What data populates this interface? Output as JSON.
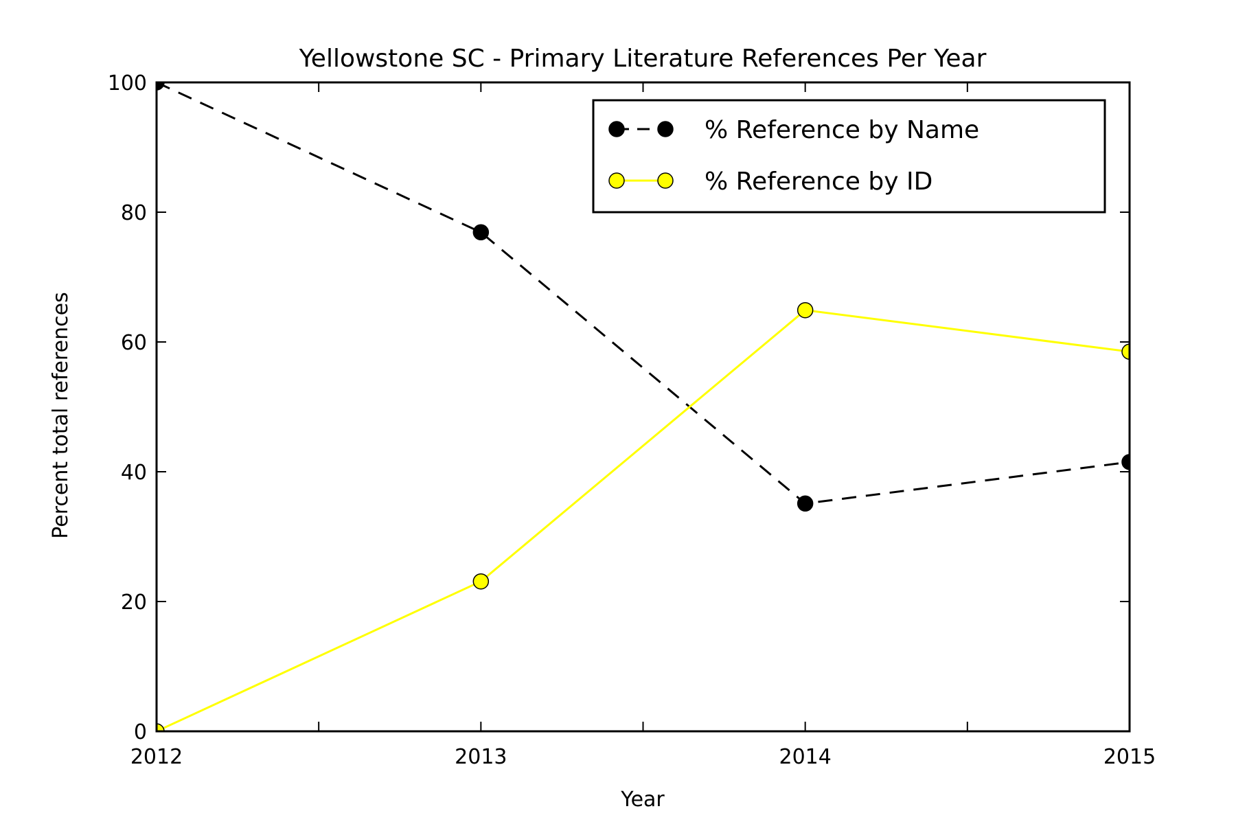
{
  "chart_data": {
    "type": "line",
    "title": "Yellowstone SC - Primary Literature References Per Year",
    "xlabel": "Year",
    "ylabel": "Percent total references",
    "x": [
      2012,
      2013,
      2014,
      2015
    ],
    "xlim": [
      2012,
      2015
    ],
    "ylim": [
      0,
      100
    ],
    "x_ticks": [
      2012,
      2013,
      2014,
      2015
    ],
    "x_tick_labels": [
      "2012",
      "2013",
      "2014",
      "2015"
    ],
    "x_minor_ticks": [
      2012.5,
      2013.5,
      2014.5
    ],
    "y_ticks": [
      0,
      20,
      40,
      60,
      80,
      100
    ],
    "y_tick_labels": [
      "0",
      "20",
      "40",
      "60",
      "80",
      "100"
    ],
    "grid": false,
    "legend_position": "top-right",
    "series": [
      {
        "name": "% Reference by Name",
        "values": [
          100,
          76.9,
          35.1,
          41.5
        ],
        "color": "#000000",
        "marker_color": "#000000",
        "line_style": "dashed"
      },
      {
        "name": "% Reference by ID",
        "values": [
          0,
          23.1,
          64.9,
          58.5
        ],
        "color": "#ffff00",
        "marker_color": "#ffff00",
        "line_style": "solid"
      }
    ]
  }
}
